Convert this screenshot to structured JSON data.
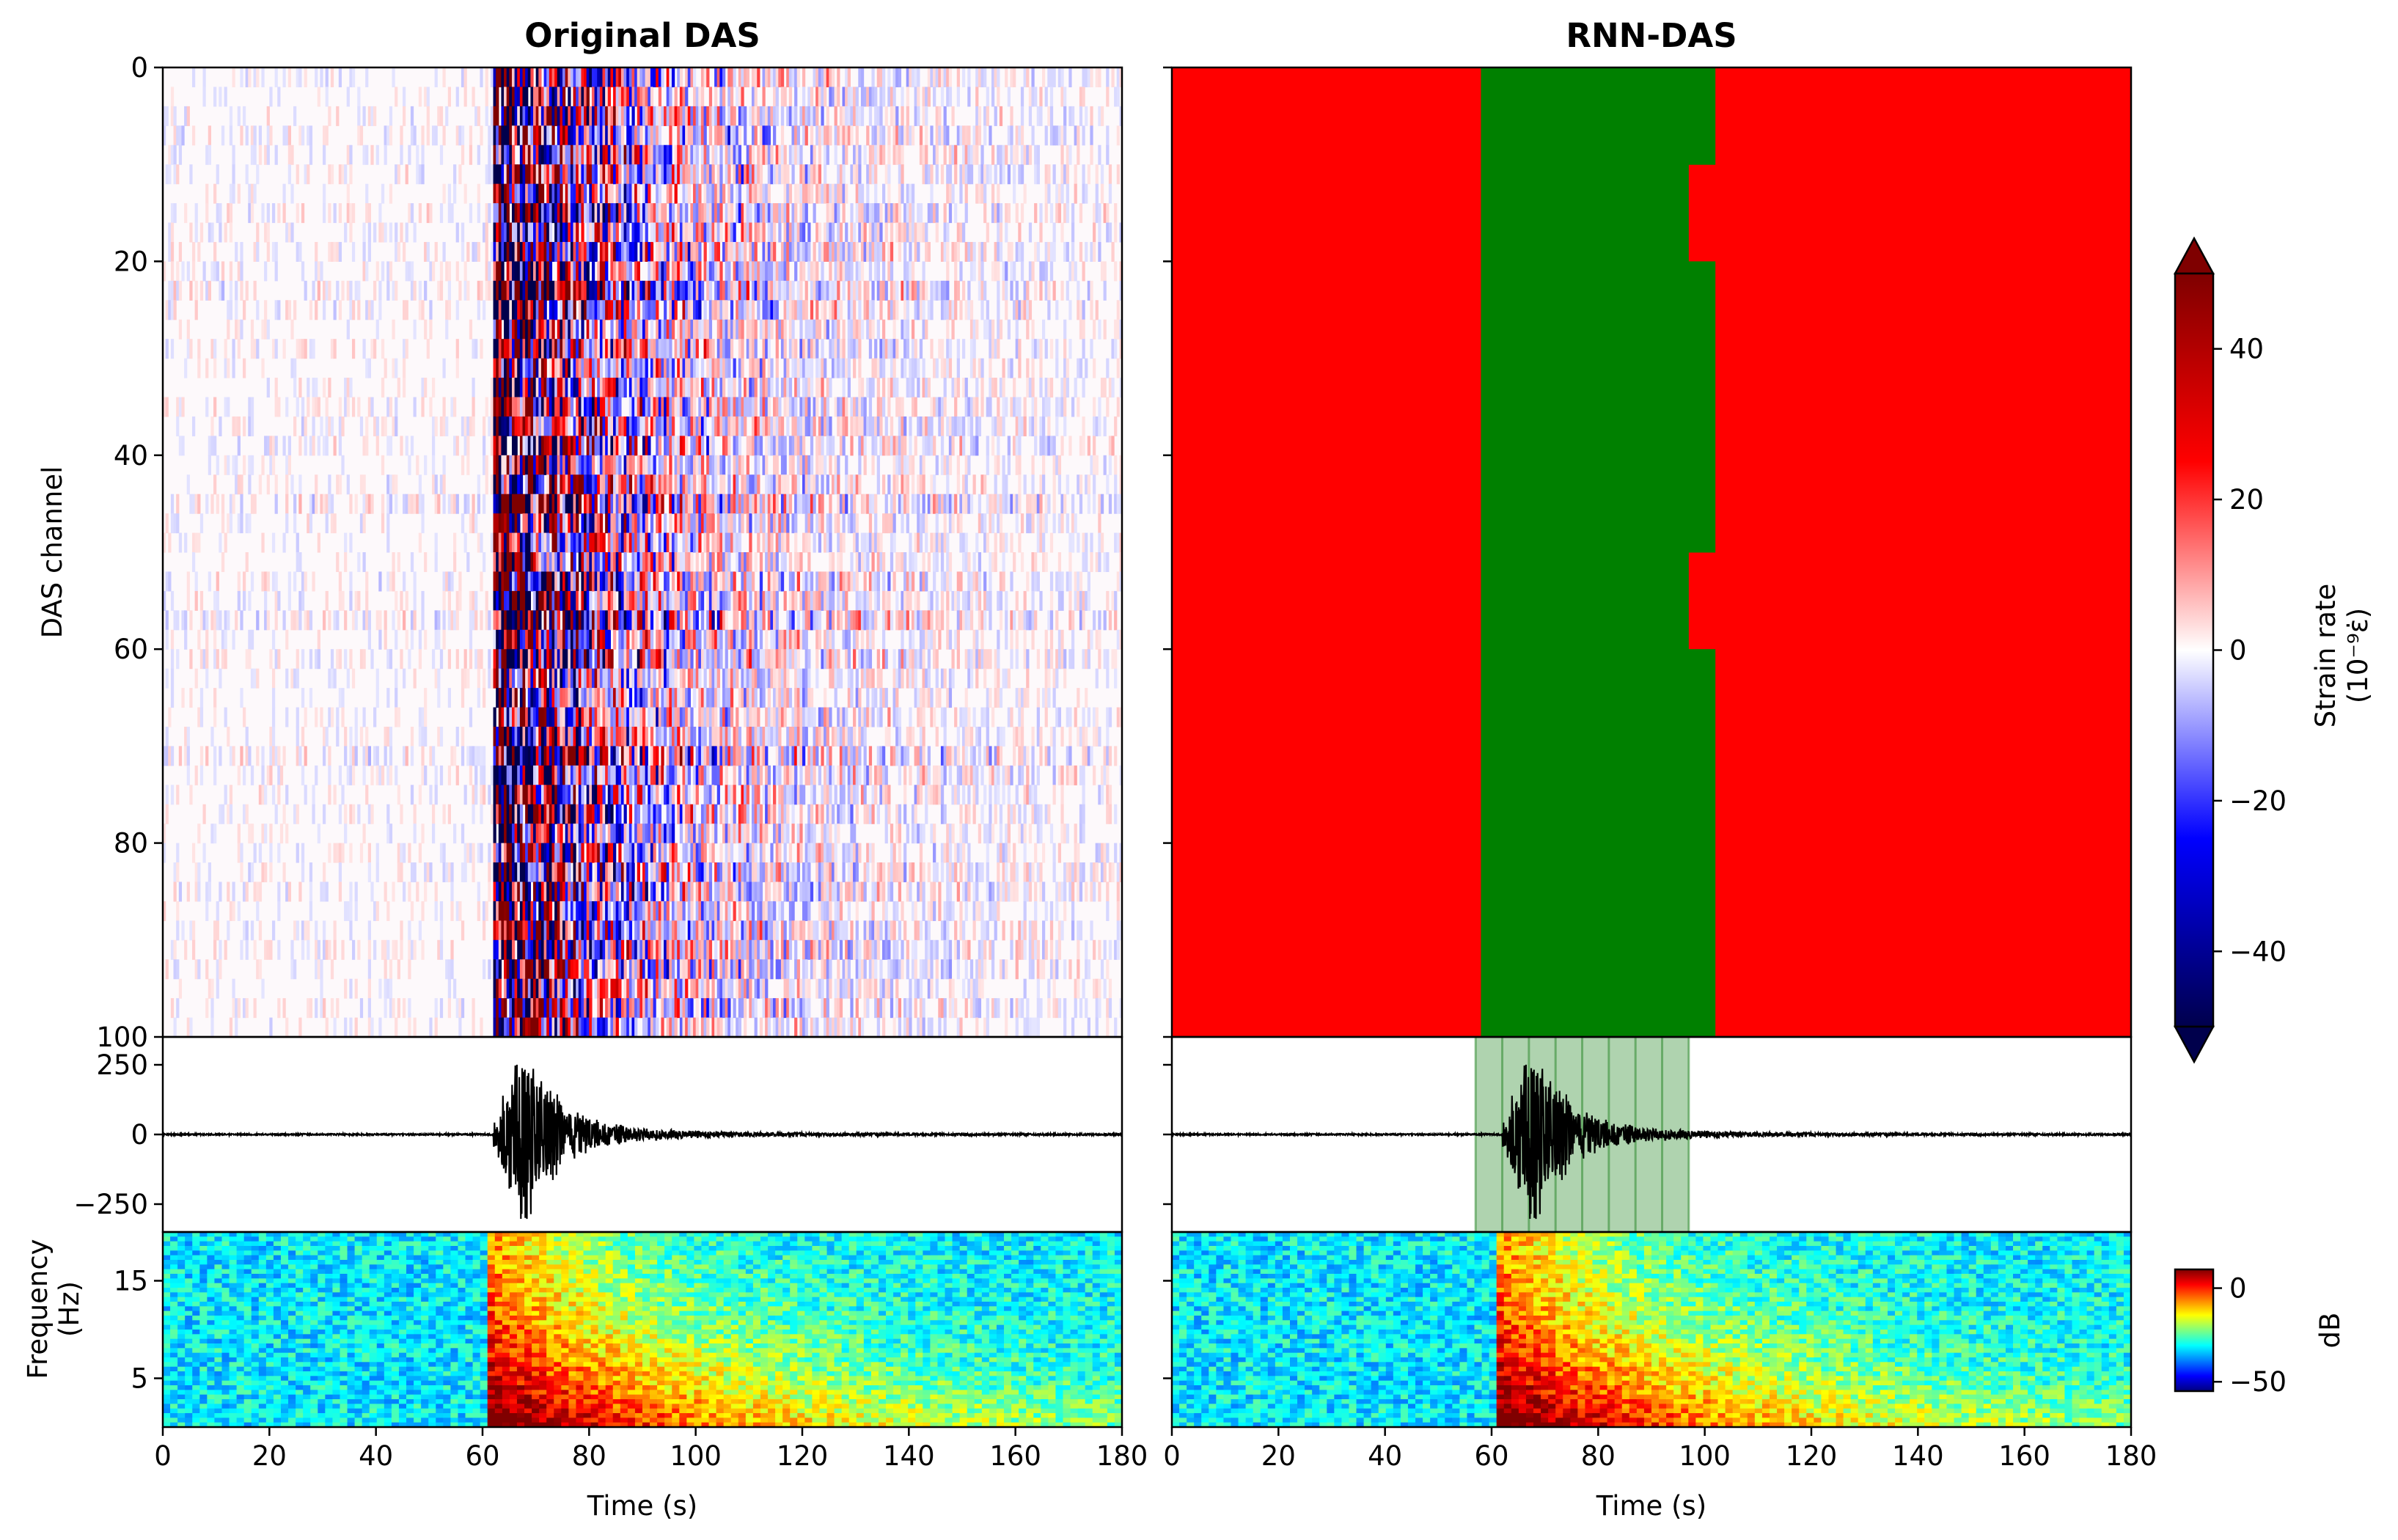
{
  "figure": {
    "colorbar_strain": {
      "label": "Strain rate",
      "unit": "(10⁻⁹ε̇)",
      "ticks": [
        40,
        20,
        0,
        -20,
        -40
      ],
      "range": [
        -50,
        50
      ],
      "colormap": "seismic",
      "extend": "both"
    },
    "colorbar_db": {
      "label": "dB",
      "ticks": [
        0,
        -50
      ],
      "range": [
        -55,
        10
      ],
      "colormap": "jet"
    }
  },
  "chart_data": [
    {
      "type": "heatmap",
      "panel": "original-das",
      "title": "Original DAS",
      "ylabel": "DAS channel",
      "x_range": [
        0,
        180
      ],
      "y_range": [
        0,
        100
      ],
      "y_inverted": true,
      "y_ticks": [
        0,
        20,
        40,
        60,
        80,
        100
      ],
      "event_onset_s": 62,
      "colormap": "seismic"
    },
    {
      "type": "heatmap",
      "panel": "rnn-das",
      "title": "RNN-DAS",
      "x_range": [
        0,
        180
      ],
      "y_range": [
        0,
        100
      ],
      "y_inverted": true,
      "colors": {
        "noise": "#ff0000",
        "event": "#008000"
      },
      "event_regions": [
        {
          "y_start": 0,
          "y_end": 10,
          "x_start": 58,
          "x_end": 102
        },
        {
          "y_start": 10,
          "y_end": 20,
          "x_start": 58,
          "x_end": 97
        },
        {
          "y_start": 20,
          "y_end": 50,
          "x_start": 58,
          "x_end": 102
        },
        {
          "y_start": 50,
          "y_end": 60,
          "x_start": 58,
          "x_end": 97
        },
        {
          "y_start": 60,
          "y_end": 100,
          "x_start": 58,
          "x_end": 102
        }
      ]
    },
    {
      "type": "line",
      "panel": "trace-left",
      "x_range": [
        0,
        180
      ],
      "y_range": [
        -350,
        350
      ],
      "y_ticks": [
        250,
        0,
        -250
      ],
      "y_tick_labels": [
        "250",
        "0",
        "−250"
      ],
      "onset_s": 62,
      "peak_s": 68,
      "peak_amplitude": 330
    },
    {
      "type": "line",
      "panel": "trace-right",
      "x_range": [
        0,
        180
      ],
      "y_range": [
        -350,
        350
      ],
      "onset_s": 62,
      "peak_s": 68,
      "peak_amplitude": 330,
      "highlight_span": [
        57,
        97
      ],
      "highlight_color": "#2e8b2e",
      "window_edges": [
        57,
        62,
        67,
        72,
        77,
        82,
        87,
        92,
        97
      ]
    },
    {
      "type": "heatmap",
      "panel": "spectrogram-left",
      "ylabel": "Frequency",
      "yunit": "(Hz)",
      "xlabel": "Time (s)",
      "x_range": [
        0,
        180
      ],
      "y_range": [
        0,
        20
      ],
      "y_ticks": [
        5,
        15
      ],
      "x_ticks": [
        0,
        20,
        40,
        60,
        80,
        100,
        120,
        140,
        160,
        180
      ],
      "onset_s": 61,
      "colormap": "jet"
    },
    {
      "type": "heatmap",
      "panel": "spectrogram-right",
      "xlabel": "Time (s)",
      "x_range": [
        0,
        180
      ],
      "y_range": [
        0,
        20
      ],
      "x_ticks": [
        0,
        20,
        40,
        60,
        80,
        100,
        120,
        140,
        160,
        180
      ],
      "onset_s": 61,
      "colormap": "jet"
    }
  ]
}
